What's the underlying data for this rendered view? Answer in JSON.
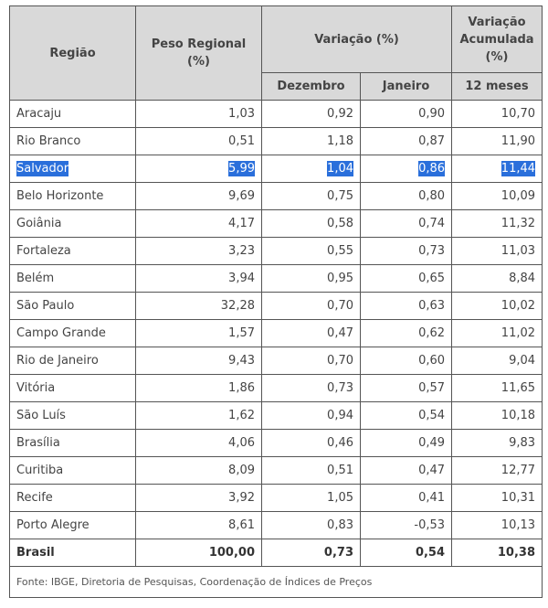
{
  "header": {
    "regiao": "Região",
    "peso": "Peso Regional (%)",
    "variacao": "Variação (%)",
    "acumulada": "Variação Acumulada (%)",
    "dezembro": "Dezembro",
    "janeiro": "Janeiro",
    "meses12": "12 meses"
  },
  "rows": [
    {
      "regiao": "Aracaju",
      "peso": "1,03",
      "dez": "0,92",
      "jan": "0,90",
      "acum": "10,70"
    },
    {
      "regiao": "Rio Branco",
      "peso": "0,51",
      "dez": "1,18",
      "jan": "0,87",
      "acum": "11,90"
    },
    {
      "regiao": "Salvador",
      "peso": "5,99",
      "dez": "1,04",
      "jan": "0,86",
      "acum": "11,44",
      "selected": true
    },
    {
      "regiao": "Belo Horizonte",
      "peso": "9,69",
      "dez": "0,75",
      "jan": "0,80",
      "acum": "10,09"
    },
    {
      "regiao": "Goiânia",
      "peso": "4,17",
      "dez": "0,58",
      "jan": "0,74",
      "acum": "11,32"
    },
    {
      "regiao": "Fortaleza",
      "peso": "3,23",
      "dez": "0,55",
      "jan": "0,73",
      "acum": "11,03"
    },
    {
      "regiao": "Belém",
      "peso": "3,94",
      "dez": "0,95",
      "jan": "0,65",
      "acum": "8,84"
    },
    {
      "regiao": "São Paulo",
      "peso": "32,28",
      "dez": "0,70",
      "jan": "0,63",
      "acum": "10,02"
    },
    {
      "regiao": "Campo Grande",
      "peso": "1,57",
      "dez": "0,47",
      "jan": "0,62",
      "acum": "11,02"
    },
    {
      "regiao": "Rio de Janeiro",
      "peso": "9,43",
      "dez": "0,70",
      "jan": "0,60",
      "acum": "9,04"
    },
    {
      "regiao": "Vitória",
      "peso": "1,86",
      "dez": "0,73",
      "jan": "0,57",
      "acum": "11,65"
    },
    {
      "regiao": "São Luís",
      "peso": "1,62",
      "dez": "0,94",
      "jan": "0,54",
      "acum": "10,18"
    },
    {
      "regiao": "Brasília",
      "peso": "4,06",
      "dez": "0,46",
      "jan": "0,49",
      "acum": "9,83"
    },
    {
      "regiao": "Curitiba",
      "peso": "8,09",
      "dez": "0,51",
      "jan": "0,47",
      "acum": "12,77"
    },
    {
      "regiao": "Recife",
      "peso": "3,92",
      "dez": "1,05",
      "jan": "0,41",
      "acum": "10,31"
    },
    {
      "regiao": "Porto Alegre",
      "peso": "8,61",
      "dez": "0,83",
      "jan": "-0,53",
      "acum": "10,13"
    }
  ],
  "total": {
    "regiao": "Brasil",
    "peso": "100,00",
    "dez": "0,73",
    "jan": "0,54",
    "acum": "10,38"
  },
  "footnote": "Fonte: IBGE, Diretoria de Pesquisas, Coordenação de Índices de Preços",
  "colors": {
    "header_bg": "#d9d9d9",
    "selection": "#2a6fdb",
    "border": "#555555"
  }
}
